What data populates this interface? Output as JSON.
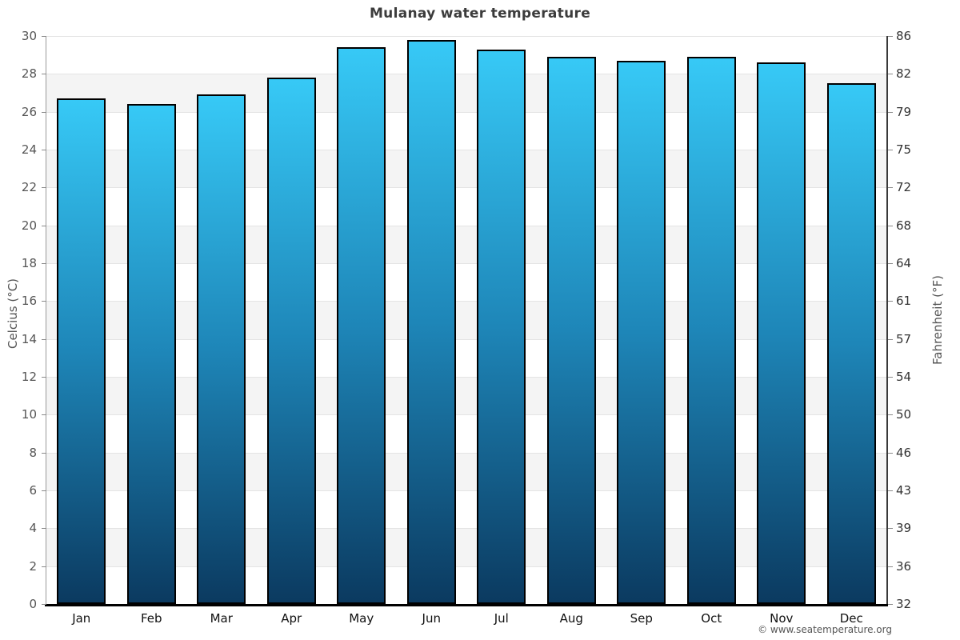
{
  "chart_data": {
    "type": "bar",
    "title": "Mulanay water temperature",
    "categories": [
      "Jan",
      "Feb",
      "Mar",
      "Apr",
      "May",
      "Jun",
      "Jul",
      "Aug",
      "Sep",
      "Oct",
      "Nov",
      "Dec"
    ],
    "values": [
      26.7,
      26.4,
      26.9,
      27.8,
      29.4,
      29.8,
      29.3,
      28.9,
      28.7,
      28.9,
      28.6,
      27.5
    ],
    "unit": "°C",
    "ylabel_left": "Celcius (°C)",
    "ylabel_right": "Fahrenheit (°F)",
    "ylim": [
      0,
      30
    ],
    "celsius_ticks": [
      30,
      28,
      26,
      24,
      22,
      20,
      18,
      16,
      14,
      12,
      10,
      8,
      6,
      4,
      2,
      0
    ],
    "fahrenheit_ticks": [
      86,
      82,
      79,
      75,
      72,
      68,
      64,
      61,
      57,
      54,
      50,
      46,
      43,
      39,
      36,
      32
    ],
    "legend_position": "none",
    "grid": "horizontal gridlines every 2°C with alternating white/gray bands",
    "copyright": "© www.seatemperature.org",
    "colors": {
      "bar_top": "#37c9f6",
      "bar_mid": "#1e86b8",
      "bar_bottom": "#0b3a60",
      "bar_border": "#000000",
      "band_alt": "#f4f4f4",
      "gridline": "#e4e4e4",
      "title_text": "#3c3c3c",
      "tick_text": "#555555",
      "month_text": "#111111"
    }
  }
}
